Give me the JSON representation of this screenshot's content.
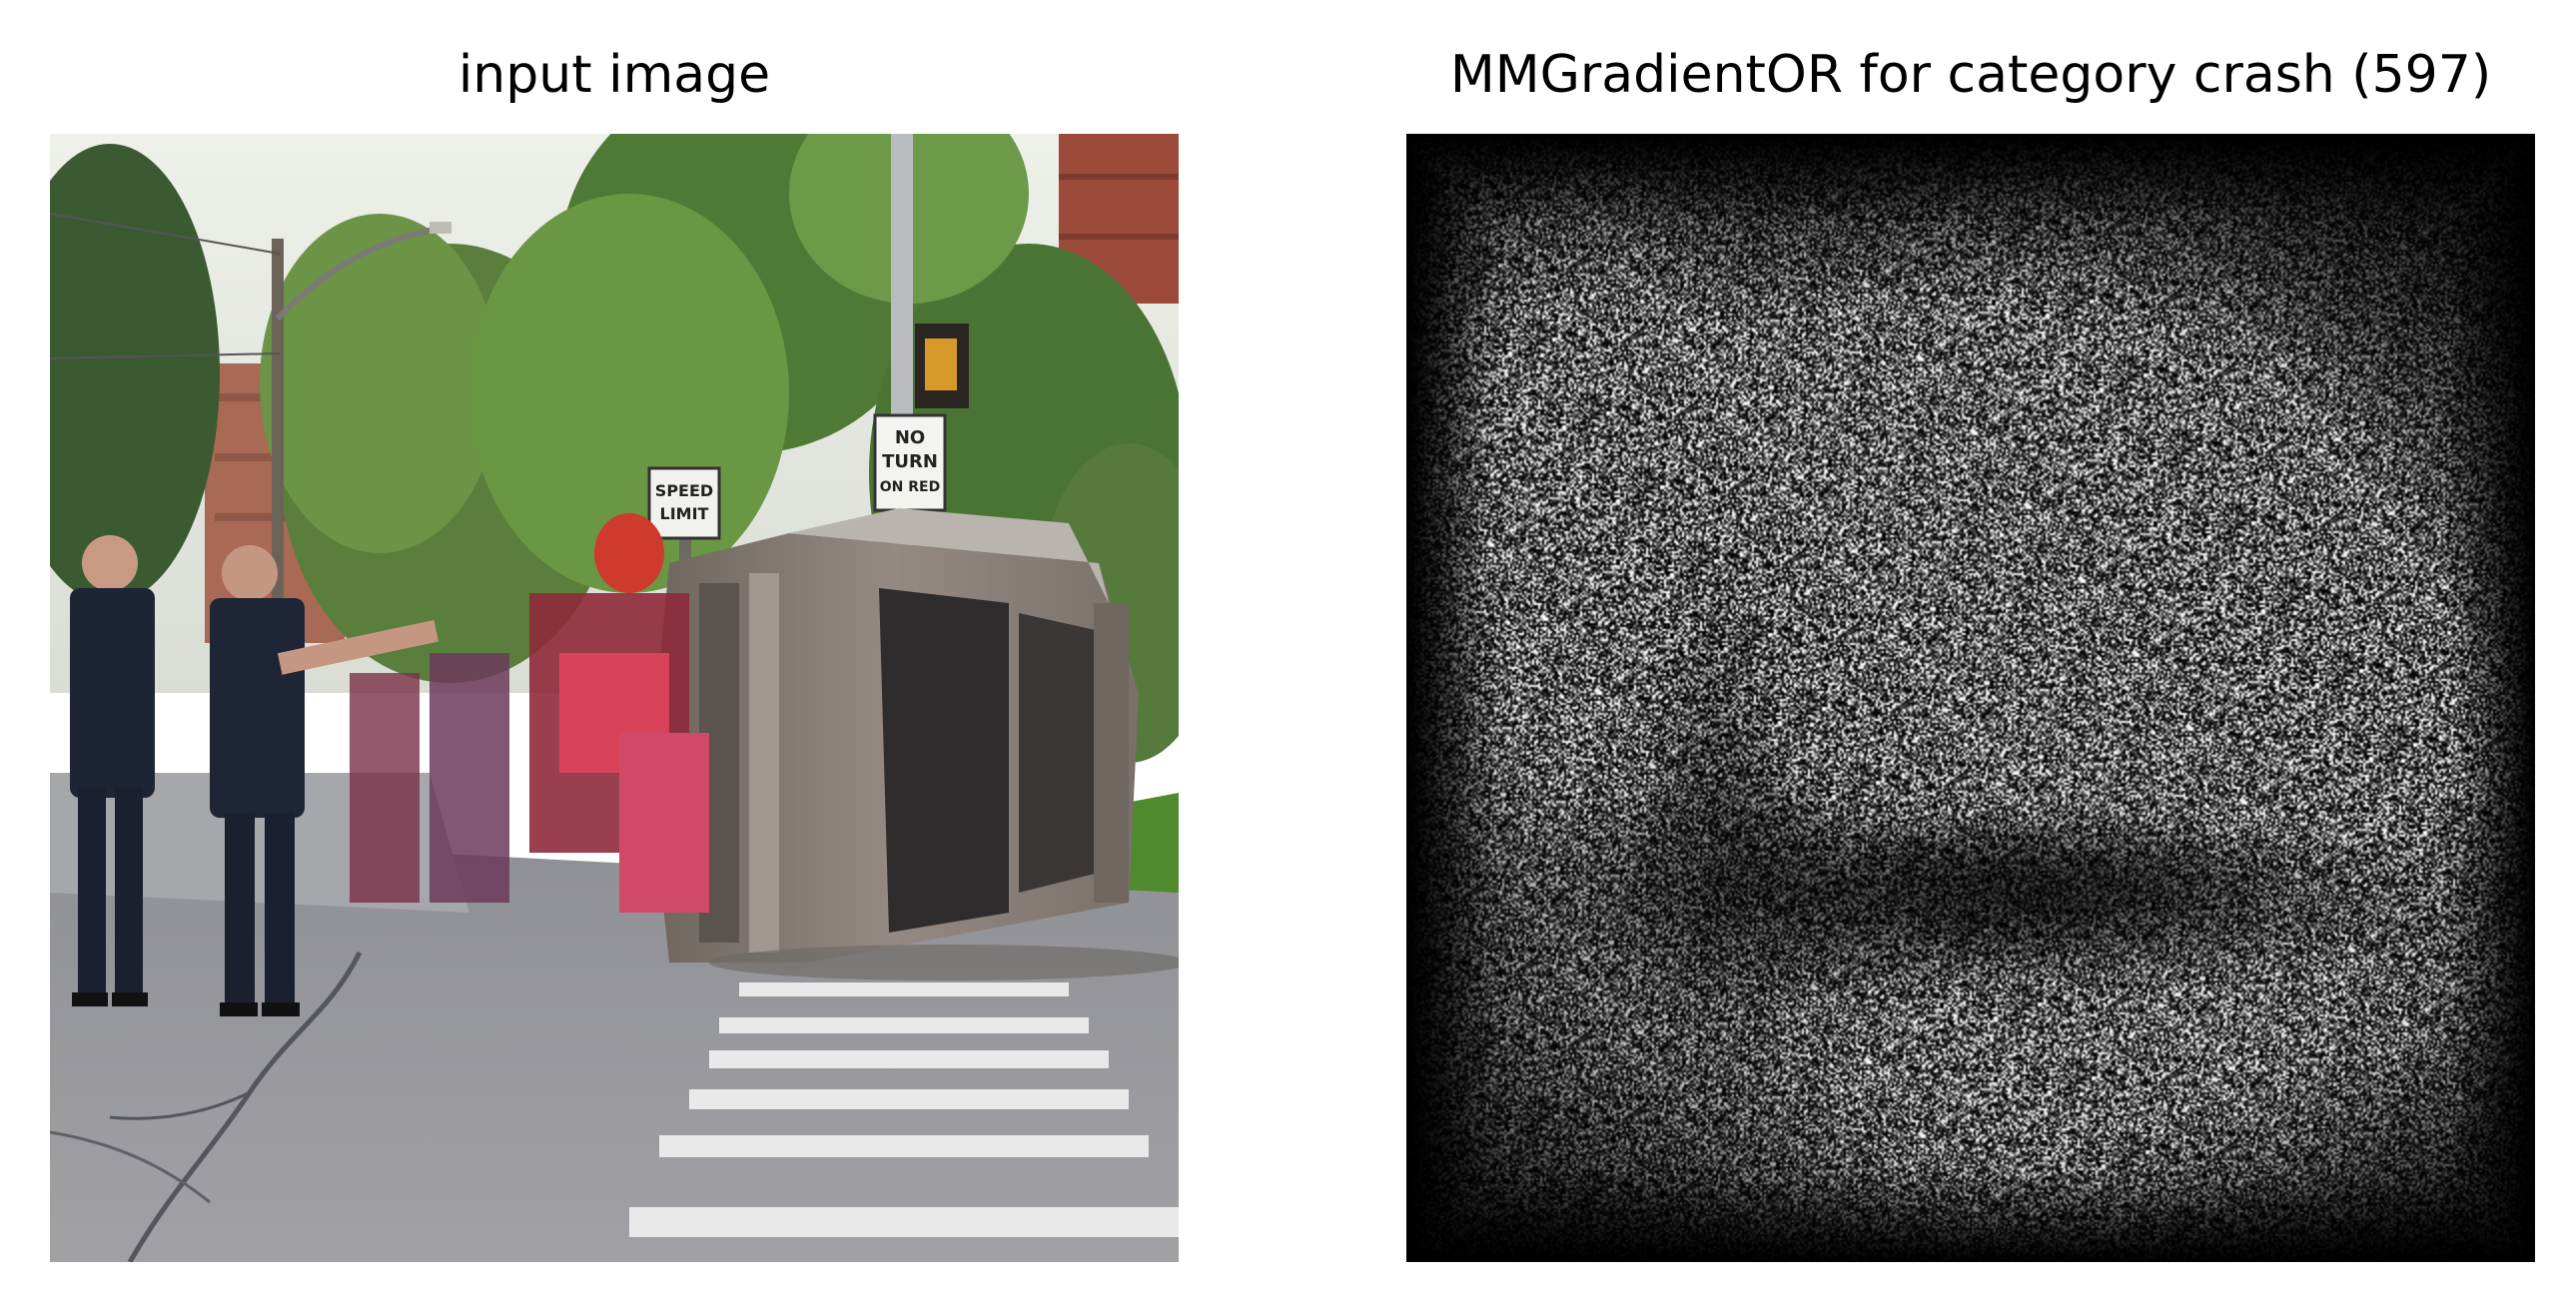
{
  "figure": {
    "left_panel": {
      "title": "input image",
      "content": {
        "signs": {
          "speed_limit_line1": "SPEED",
          "speed_limit_line2": "LIMIT",
          "no_turn_line1": "NO",
          "no_turn_line2": "TURN",
          "no_turn_line3": "ON RED"
        }
      }
    },
    "right_panel": {
      "title": "MMGradientOR for category crash (597)",
      "colormap": "gray"
    }
  },
  "colors": {
    "background": "#ffffff",
    "sky": "#e9ebe4",
    "foliage": "#5f8a3e",
    "road": "#9a9a9e",
    "car_body": "#8a7e76",
    "uniform": "#1d2433",
    "saliency_background": "#000000"
  }
}
